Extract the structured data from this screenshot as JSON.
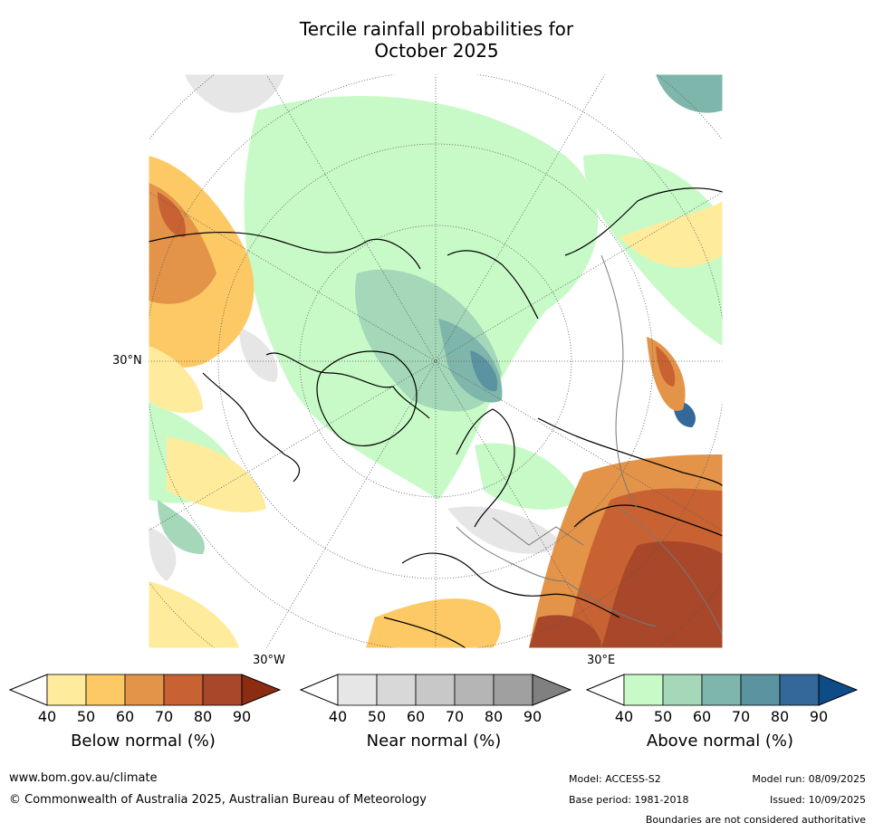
{
  "title_line1": "Tercile rainfall probabilities for",
  "title_line2": "October 2025",
  "map": {
    "lat_label": "30°N",
    "lon_label_left": "30°W",
    "lon_label_right": "30°E"
  },
  "colorbars": [
    {
      "label": "Below normal (%)",
      "ticks": [
        "40",
        "50",
        "60",
        "70",
        "80",
        "90"
      ],
      "colors": [
        "#ffeb9c",
        "#fdc965",
        "#e39449",
        "#c96232",
        "#a8472a",
        "#8c2d12"
      ]
    },
    {
      "label": "Near normal (%)",
      "ticks": [
        "40",
        "50",
        "60",
        "70",
        "80",
        "90"
      ],
      "colors": [
        "#e6e6e6",
        "#d8d8d8",
        "#c8c8c8",
        "#b5b5b5",
        "#a0a0a0",
        "#808080"
      ]
    },
    {
      "label": "Above normal (%)",
      "ticks": [
        "40",
        "50",
        "60",
        "70",
        "80",
        "90"
      ],
      "colors": [
        "#c8fac8",
        "#a4d8b8",
        "#7fb6ac",
        "#5b93a0",
        "#34689b",
        "#0e4c88"
      ]
    }
  ],
  "footer": {
    "website": "www.bom.gov.au/climate",
    "copyright": "© Commonwealth of Australia 2025, Australian Bureau of Meteorology",
    "model": "Model: ACCESS-S2",
    "model_run": "Model run: 08/09/2025",
    "base_period": "Base period: 1981-2018",
    "issued": "Issued: 10/09/2025",
    "disclaimer": "Boundaries are not considered authoritative"
  }
}
